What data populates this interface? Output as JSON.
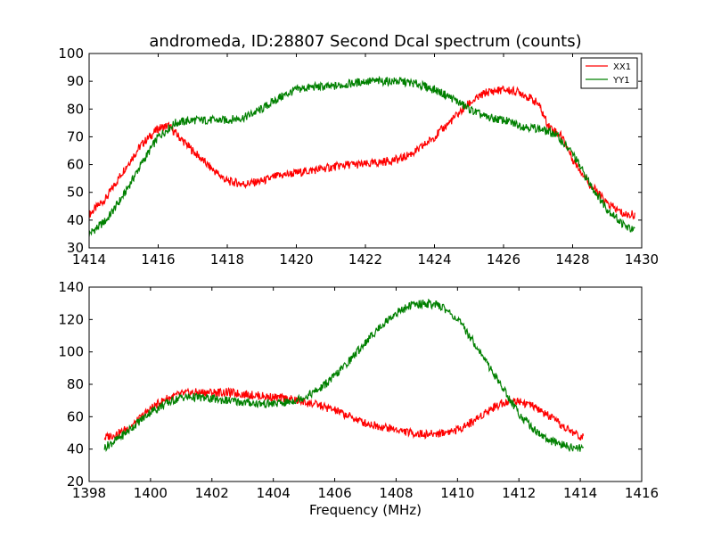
{
  "chart_data": [
    {
      "type": "line",
      "title": "andromeda, ID:28807 Second Dcal spectrum (counts)",
      "xlabel": "",
      "ylabel": "",
      "xlim": [
        1414,
        1430
      ],
      "ylim": [
        30,
        100
      ],
      "xticks": [
        1414,
        1416,
        1418,
        1420,
        1422,
        1424,
        1426,
        1428,
        1430
      ],
      "yticks": [
        30,
        40,
        50,
        60,
        70,
        80,
        90,
        100
      ],
      "grid": false,
      "legend": "top-right",
      "colors": {
        "XX1": "#ff0000",
        "YY1": "#008000"
      },
      "series": [
        {
          "name": "XX1",
          "x": [
            1414.0,
            1414.5,
            1415.0,
            1415.5,
            1416.0,
            1416.3,
            1416.6,
            1417.0,
            1417.5,
            1418.0,
            1418.5,
            1419.0,
            1419.5,
            1420.0,
            1420.5,
            1421.0,
            1421.5,
            1422.0,
            1422.5,
            1423.0,
            1423.5,
            1424.0,
            1424.5,
            1425.0,
            1425.5,
            1426.0,
            1426.5,
            1427.0,
            1427.3,
            1427.7,
            1428.0,
            1428.5,
            1429.0,
            1429.5,
            1429.8
          ],
          "values": [
            42,
            48,
            58,
            67,
            73,
            74,
            70,
            65,
            59,
            54,
            53,
            54,
            56,
            57,
            58,
            59,
            60,
            60,
            61,
            62,
            65,
            70,
            76,
            82,
            86,
            87,
            86,
            82,
            74,
            70,
            62,
            53,
            46,
            42,
            42
          ]
        },
        {
          "name": "YY1",
          "x": [
            1414.0,
            1414.5,
            1415.0,
            1415.5,
            1416.0,
            1416.5,
            1417.0,
            1417.5,
            1418.0,
            1418.5,
            1419.0,
            1419.5,
            1420.0,
            1420.5,
            1421.0,
            1421.5,
            1422.0,
            1422.5,
            1423.0,
            1423.5,
            1424.0,
            1424.5,
            1425.0,
            1425.5,
            1426.0,
            1426.5,
            1427.0,
            1427.5,
            1428.0,
            1428.5,
            1429.0,
            1429.5,
            1429.8
          ],
          "values": [
            35,
            40,
            49,
            60,
            70,
            75,
            76,
            76,
            76,
            77,
            80,
            84,
            87,
            88,
            88,
            89,
            90,
            90,
            90,
            89,
            87,
            84,
            80,
            77,
            76,
            74,
            73,
            71,
            64,
            53,
            44,
            38,
            36
          ]
        }
      ]
    },
    {
      "type": "line",
      "title": "",
      "xlabel": "Frequency (MHz)",
      "ylabel": "",
      "xlim": [
        1398,
        1416
      ],
      "ylim": [
        20,
        140
      ],
      "xticks": [
        1398,
        1400,
        1402,
        1404,
        1406,
        1408,
        1410,
        1412,
        1414,
        1416
      ],
      "yticks": [
        20,
        40,
        60,
        80,
        100,
        120,
        140
      ],
      "grid": false,
      "colors": {
        "XX1": "#ff0000",
        "YY1": "#008000"
      },
      "series": [
        {
          "name": "XX1",
          "x": [
            1398.5,
            1399.0,
            1399.5,
            1400.0,
            1400.5,
            1401.0,
            1401.5,
            1402.0,
            1402.5,
            1403.0,
            1403.5,
            1404.0,
            1404.5,
            1405.0,
            1405.5,
            1406.0,
            1406.5,
            1407.0,
            1407.5,
            1408.0,
            1408.5,
            1409.0,
            1409.5,
            1410.0,
            1410.5,
            1411.0,
            1411.5,
            1412.0,
            1412.5,
            1413.0,
            1413.5,
            1414.1
          ],
          "values": [
            47,
            50,
            56,
            65,
            71,
            74,
            75,
            75,
            75,
            74,
            73,
            72,
            71,
            69,
            67,
            64,
            60,
            56,
            54,
            52,
            50,
            49,
            50,
            52,
            57,
            64,
            69,
            70,
            66,
            60,
            53,
            47
          ]
        },
        {
          "name": "YY1",
          "x": [
            1398.5,
            1399.0,
            1399.5,
            1400.0,
            1400.5,
            1401.0,
            1401.5,
            1402.0,
            1402.5,
            1403.0,
            1403.5,
            1404.0,
            1404.5,
            1405.0,
            1405.5,
            1406.0,
            1406.5,
            1407.0,
            1407.5,
            1408.0,
            1408.5,
            1409.0,
            1409.5,
            1410.0,
            1410.5,
            1411.0,
            1411.5,
            1412.0,
            1412.5,
            1413.0,
            1413.5,
            1414.1
          ],
          "values": [
            41,
            47,
            55,
            63,
            68,
            72,
            72,
            71,
            70,
            69,
            68,
            68,
            69,
            72,
            77,
            85,
            95,
            106,
            116,
            124,
            129,
            130,
            128,
            120,
            107,
            92,
            77,
            62,
            52,
            45,
            42,
            40
          ]
        }
      ]
    }
  ]
}
